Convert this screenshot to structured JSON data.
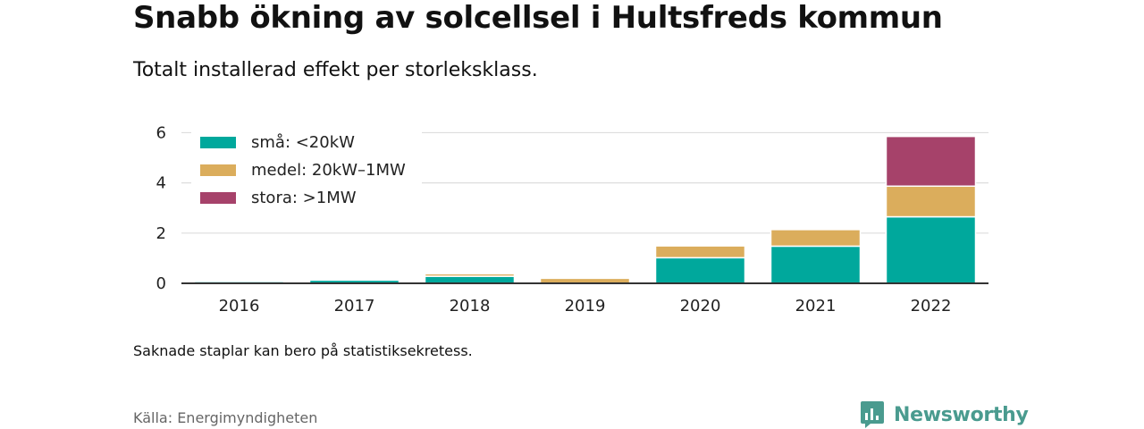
{
  "title": "Snabb ökning av solcellsel i Hultsfreds kommun",
  "subtitle": "Totalt installerad effekt per storleksklass.",
  "note": "Saknade staplar kan bero på statistiksekretess.",
  "source": "Källa: Energimyndigheten",
  "brand": {
    "name": "Newsworthy",
    "icon": "newsworthy-logo-icon",
    "color": "#4a9b8f"
  },
  "chart_data": {
    "type": "bar",
    "stacked": true,
    "categories": [
      "2016",
      "2017",
      "2018",
      "2019",
      "2020",
      "2021",
      "2022"
    ],
    "series": [
      {
        "name": "små: <20kW",
        "color": "#00a89c",
        "values": [
          0.07,
          0.13,
          0.28,
          0,
          1.02,
          1.48,
          2.65
        ]
      },
      {
        "name": "medel: 20kW–1MW",
        "color": "#dbad5c",
        "values": [
          0,
          0.04,
          0.1,
          0.2,
          0.47,
          0.66,
          1.22
        ]
      },
      {
        "name": "stora: >1MW",
        "color": "#a6426a",
        "values": [
          0,
          0,
          0,
          0,
          0,
          0,
          1.98
        ]
      }
    ],
    "yticks": [
      0,
      2,
      4,
      6
    ],
    "ylim": [
      0,
      6.3
    ],
    "grid": true,
    "legend_position": "top-left"
  }
}
